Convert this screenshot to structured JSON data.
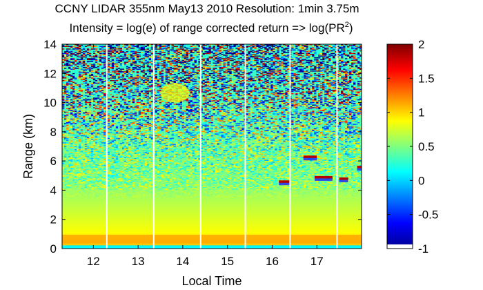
{
  "chart_data": {
    "type": "heatmap",
    "title_line1": "CCNY LIDAR 355nm May13 2010 Resolution: 1min 3.75m",
    "title_line2_prefix": "Intensity = log(e) of range corrected return => log(PR",
    "title_line2_sup": "2",
    "title_line2_suffix": ")",
    "xlabel": "Local Time",
    "ylabel": "Range (km)",
    "x_ticks": [
      "12",
      "13",
      "14",
      "15",
      "16",
      "17"
    ],
    "y_ticks": [
      "0",
      "2",
      "4",
      "6",
      "8",
      "10",
      "12",
      "14"
    ],
    "xlim": [
      11.3,
      18.0
    ],
    "ylim": [
      0,
      14
    ],
    "colorbar": {
      "ticks": [
        "-1",
        "-0.5",
        "0",
        "0.5",
        "1",
        "1.5",
        "2"
      ],
      "range": [
        -1,
        2
      ],
      "colormap": "jet"
    },
    "gap_times": [
      12.3,
      13.35,
      14.4,
      15.4,
      16.4,
      17.45
    ],
    "cloud_layers": [
      {
        "t_start": 16.15,
        "t_end": 16.4,
        "range_km": 4.6
      },
      {
        "t_start": 16.7,
        "t_end": 17.0,
        "range_km": 6.3
      },
      {
        "t_start": 16.95,
        "t_end": 17.35,
        "range_km": 4.9
      },
      {
        "t_start": 17.5,
        "t_end": 17.7,
        "range_km": 4.8
      },
      {
        "t_start": 17.9,
        "t_end": 18.0,
        "range_km": 5.6
      }
    ],
    "aerosol_patch": {
      "t_start": 13.5,
      "t_end": 14.15,
      "range_min_km": 10.0,
      "range_max_km": 11.3
    }
  }
}
